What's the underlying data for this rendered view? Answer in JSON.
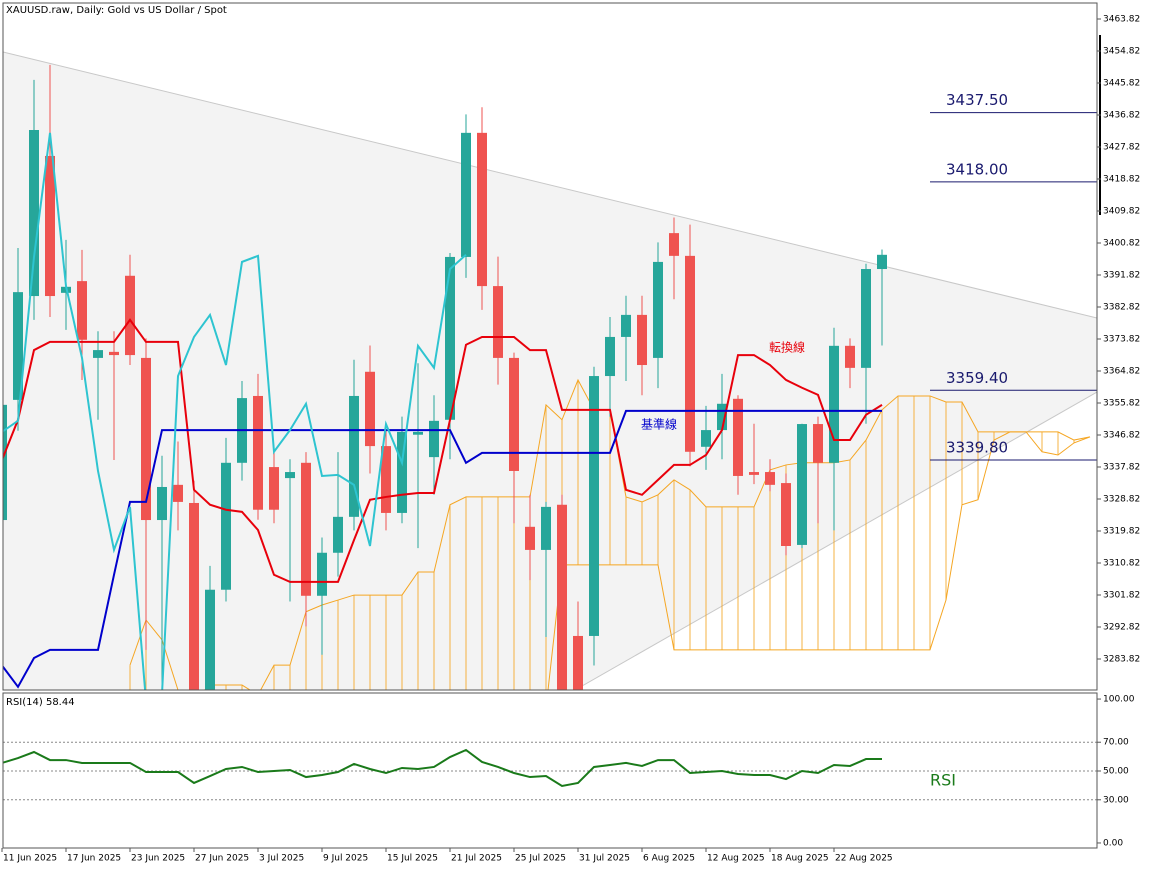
{
  "chart_data": [
    {
      "type": "candlestick",
      "title": "XAUUSD.raw, Daily:  Gold vs US Dollar / Spot",
      "categories": [
        "11 Jun 2025",
        null,
        null,
        null,
        "17 Jun 2025",
        null,
        null,
        null,
        "23 Jun 2025",
        null,
        null,
        null,
        "27 Jun 2025",
        null,
        null,
        null,
        "3 Jul 2025",
        null,
        null,
        null,
        "9 Jul 2025",
        null,
        null,
        null,
        "15 Jul 2025",
        null,
        null,
        null,
        "21 Jul 2025",
        null,
        null,
        null,
        "25 Jul 2025",
        null,
        null,
        null,
        "31 Jul 2025",
        null,
        null,
        null,
        "6 Aug 2025",
        null,
        null,
        null,
        "12 Aug 2025",
        null,
        null,
        null,
        "18 Aug 2025",
        null,
        null,
        null,
        "22 Aug 2025",
        null,
        null,
        null,
        null,
        null,
        null,
        null,
        null,
        null,
        null,
        null,
        null,
        null,
        null,
        null,
        null
      ],
      "open": [
        3322.9,
        3356.7,
        3385.9,
        3425.3,
        3386.8,
        3390.1,
        3368.5,
        3370.2,
        3391.6,
        3368.5,
        3322.9,
        3332.8,
        3327.7,
        3272,
        3303.3,
        3339.0,
        3357.8,
        3337.8,
        3334.7,
        3339.0,
        3301.6,
        3313.7,
        3323.8,
        3364.6,
        3343.7,
        3324.9,
        3346.9,
        3340.6,
        3351.1,
        3396.9,
        3431.8,
        3388.7,
        3368.5,
        3321.0,
        3314.5,
        3327.2,
        3290.3,
        3290.3,
        3363.4,
        3374.4,
        3380.6,
        3368.5,
        3403.6,
        3397.2,
        3343.5,
        3348.2,
        3357.0,
        3336.4,
        3336.4,
        3333.3,
        3315.9,
        3349.9,
        3339.0,
        3371.9,
        3365.7,
        3393.5,
        null,
        null,
        null,
        null,
        null,
        null,
        null,
        null,
        null,
        null,
        null,
        null,
        null
      ],
      "high": [
        3357.5,
        3399.4,
        3446.7,
        3450.9,
        3401.7,
        3398.9,
        3376,
        3376,
        3397.5,
        3374,
        3341,
        3345,
        3334,
        3310,
        3346,
        3362,
        3364,
        3344,
        3340,
        3342,
        3318,
        3342,
        3368,
        3372,
        3348,
        3352,
        3367,
        3358,
        3398,
        3437,
        3439,
        3397,
        3370,
        3330,
        3328,
        3330,
        3300,
        3366,
        3380,
        3386,
        3386,
        3401,
        3408,
        3406,
        3355,
        3364,
        3358,
        3350,
        3340,
        3336,
        3350,
        3352,
        3377,
        3374,
        3395,
        3399,
        null,
        null,
        null,
        null,
        null,
        null,
        null,
        null,
        null,
        null,
        null,
        null,
        null
      ],
      "low": [
        3318,
        3348,
        3379.2,
        3380,
        3376.4,
        3362.3,
        3351.1,
        3339.8,
        3366.5,
        3286.4,
        3272,
        3320,
        3270,
        3270,
        3300,
        3334,
        3323,
        3322,
        3300,
        3293,
        3285,
        3307,
        3320,
        3336,
        3320,
        3322,
        3315,
        3330,
        3340,
        3391,
        3382,
        3361,
        3322,
        3306,
        3290,
        3270,
        3272,
        3282,
        3352,
        3362,
        3358,
        3360,
        3385,
        3338,
        3337,
        3340,
        3330,
        3333,
        3331,
        3313,
        3315,
        3322,
        3320,
        3360,
        3350,
        3372,
        null,
        null,
        null,
        null,
        null,
        null,
        null,
        null,
        null,
        null,
        null,
        null,
        null
      ],
      "close": [
        3355.3,
        3387.0,
        3432.6,
        3385.9,
        3388.5,
        3373.6,
        3370.7,
        3369.3,
        3369.3,
        3322.9,
        3332.2,
        3328.0,
        3272,
        3303.3,
        3339.0,
        3357.2,
        3325.8,
        3325.8,
        3336.4,
        3301.6,
        3313.7,
        3323.8,
        3357.8,
        3343.7,
        3324.9,
        3347.7,
        3347.7,
        3350.8,
        3396.9,
        3431.8,
        3388.7,
        3368.5,
        3336.7,
        3314.5,
        3326.6,
        3272,
        3274,
        3363.4,
        3374.4,
        3380.6,
        3366.5,
        3395.5,
        3397.2,
        3342.1,
        3348.2,
        3355.6,
        3335.3,
        3335.6,
        3332.8,
        3315.6,
        3349.9,
        3339.0,
        3371.9,
        3365.7,
        3393.5,
        3397.5,
        null,
        null,
        null,
        null,
        null,
        null,
        null,
        null,
        null,
        null,
        null,
        null,
        null
      ],
      "up_color": "#26a69a",
      "down_color": "#ef5350",
      "series": [
        {
          "name": "転換線",
          "color": "#e8000b",
          "values": [
            3339.8,
            3351.1,
            3370.7,
            3373.0,
            3373.0,
            3373.0,
            3373.0,
            3373.0,
            3379.2,
            3373.0,
            3373.0,
            3373.0,
            3331.4,
            3327.2,
            3325.8,
            3325.2,
            3320.1,
            3307.5,
            3305.5,
            3305.5,
            3305.5,
            3305.5,
            3317.3,
            3328.6,
            3329.4,
            3330.0,
            3330.5,
            3330.5,
            3351.1,
            3372.2,
            3374.4,
            3374.4,
            3374.4,
            3370.7,
            3370.7,
            3353.9,
            3353.9,
            3353.9,
            3353.9,
            3331.4,
            3330.0,
            3334.2,
            3338.4,
            3338.4,
            3341.2,
            3348.2,
            3369.3,
            3369.3,
            3366.5,
            3362.3,
            3360.1,
            3358.1,
            3345.4,
            3345.4,
            3352.5,
            3355.3,
            null,
            null,
            null,
            null,
            null,
            null,
            null,
            null,
            null,
            null,
            null,
            null,
            null
          ]
        },
        {
          "name": "基準線",
          "color": "#0000cc",
          "values": [
            3282,
            3276,
            3284.1,
            3286.4,
            3286.4,
            3286.4,
            3286.4,
            3307.5,
            3328.0,
            3328.0,
            3348.2,
            3348.2,
            3348.2,
            3348.2,
            3348.2,
            3348.2,
            3348.2,
            3348.2,
            3348.2,
            3348.2,
            3348.2,
            3348.2,
            3348.2,
            3348.2,
            3348.2,
            3348.2,
            3348.2,
            3348.2,
            3348.2,
            3339.0,
            3341.8,
            3341.8,
            3341.8,
            3341.8,
            3341.8,
            3341.8,
            3341.8,
            3341.8,
            3341.8,
            3353.6,
            3353.6,
            3353.6,
            3353.6,
            3353.6,
            3353.6,
            3353.6,
            3353.6,
            3353.6,
            3353.6,
            3353.6,
            3353.6,
            3353.6,
            3353.6,
            3353.6,
            3353.6,
            3353.6,
            null,
            null,
            null,
            null,
            null,
            null,
            null,
            null,
            null,
            null,
            null,
            null,
            null
          ]
        },
        {
          "color": "#2ec4d0",
          "values": [
            3347.7,
            3350.8,
            3396.9,
            3431.8,
            3388.7,
            3368.5,
            3336.7,
            3314.5,
            3326.6,
            3272,
            3274,
            3363.4,
            3374.4,
            3380.6,
            3366.5,
            3395.5,
            3397.2,
            3342.1,
            3348.2,
            3355.6,
            3335.3,
            3335.6,
            3332.8,
            3315.6,
            3349.9,
            3339.0,
            3371.9,
            3365.7,
            3393.5,
            3397.5,
            null,
            null,
            null,
            null,
            null,
            null,
            null,
            null,
            null,
            null,
            null,
            null,
            null,
            null,
            null,
            null,
            null,
            null,
            null,
            null,
            null,
            null,
            null,
            null,
            null,
            null,
            null,
            null,
            null,
            null,
            null,
            null,
            null,
            null,
            null,
            null,
            null,
            null,
            null
          ]
        }
      ],
      "cloud": {
        "color": "#f5a623",
        "span_a": [
          null,
          null,
          null,
          null,
          null,
          null,
          null,
          null,
          3282.1,
          3294.8,
          3289.2,
          3275.1,
          3272.3,
          3276.5,
          3276.5,
          3276.5,
          3273.7,
          3282.1,
          3282.1,
          3297.1,
          3299.0,
          3300.4,
          3301.8,
          3301.8,
          3301.8,
          3301.8,
          3308.3,
          3308.3,
          3327.2,
          3329.4,
          3329.4,
          3329.4,
          3329.4,
          3329.4,
          3355.3,
          3351.1,
          3362.3,
          3353.9,
          3353.9,
          3329.4,
          3328.0,
          3330.0,
          3334.2,
          3331.4,
          3326.6,
          3326.6,
          3326.6,
          3326.6,
          3337.0,
          3338.4,
          3339.0,
          3339.0,
          3339.0,
          3339.8,
          3345.4,
          3353.9,
          3357.8,
          3357.8,
          3357.8,
          3356.1,
          3356.1,
          3347.7,
          3347.7,
          3347.7,
          3347.7,
          3342.1,
          3341.2,
          3344.6,
          3346.3
        ],
        "span_b": [
          null,
          null,
          null,
          null,
          null,
          null,
          null,
          null,
          3270,
          3270,
          3270,
          3270,
          3270,
          3270,
          3270,
          3270,
          3270,
          3270,
          3270,
          3270,
          3270,
          3270,
          3270,
          3270,
          3270,
          3270,
          3270,
          3270,
          3270,
          3270,
          3270,
          3270,
          3270,
          3270,
          3270,
          3310.3,
          3310.3,
          3310.3,
          3310.3,
          3310.3,
          3310.3,
          3310.3,
          3286.4,
          3286.4,
          3286.4,
          3286.4,
          3286.4,
          3286.4,
          3286.4,
          3286.4,
          3286.4,
          3286.4,
          3286.4,
          3286.4,
          3286.4,
          3286.4,
          3286.4,
          3286.4,
          3286.4,
          3300.4,
          3327.2,
          3328.6,
          3345.4,
          3347.7,
          3347.7,
          3347.7,
          3347.7,
          3345.4,
          3346.3
        ]
      },
      "ylim": [
        3275.1,
        3468.32
      ],
      "yticks": [
        3463.82,
        3454.82,
        3445.82,
        3436.82,
        3427.82,
        3418.82,
        3409.82,
        3400.82,
        3391.82,
        3382.82,
        3373.82,
        3364.82,
        3355.82,
        3346.82,
        3337.82,
        3328.82,
        3319.82,
        3310.82,
        3301.82,
        3292.82,
        3283.82
      ],
      "levels": [
        {
          "value": 3437.5,
          "label": "3437.50"
        },
        {
          "value": 3418,
          "label": "3418.00"
        },
        {
          "value": 3359.4,
          "label": "3359.40"
        },
        {
          "value": 3339.8,
          "label": "3339.80"
        }
      ],
      "level_color": "#1a1a6e"
    },
    {
      "type": "line",
      "title": "RSI(14) 58.44",
      "annotation": "RSI",
      "color": "#1a7a1a",
      "values": [
        55.6,
        59.0,
        63.2,
        57.6,
        57.6,
        55.6,
        55.6,
        55.6,
        55.6,
        49.3,
        49.3,
        49.3,
        41.7,
        46.5,
        51.4,
        52.8,
        49.3,
        50.0,
        50.7,
        45.8,
        47.2,
        49.3,
        54.9,
        51.4,
        48.6,
        52.1,
        51.4,
        52.8,
        59.7,
        64.6,
        56.3,
        52.8,
        48.6,
        45.8,
        46.5,
        39.6,
        41.7,
        52.8,
        54.2,
        55.6,
        53.5,
        57.6,
        57.6,
        48.6,
        49.3,
        50.0,
        47.9,
        47.2,
        47.2,
        44.4,
        50.0,
        48.6,
        54.2,
        53.5,
        58.3,
        58.3,
        null,
        null,
        null,
        null,
        null,
        null,
        null,
        null,
        null,
        null,
        null,
        null,
        null
      ],
      "ylim": [
        -3.5,
        104.2
      ],
      "yticks": [
        {
          "value": 100,
          "label": "100.00"
        },
        {
          "value": 70,
          "label": "70.00"
        },
        {
          "value": 50,
          "label": "50.00"
        },
        {
          "value": 30,
          "label": "30.00"
        },
        {
          "value": 0,
          "label": "0.00"
        }
      ],
      "levels": [
        70,
        50,
        30
      ]
    }
  ]
}
